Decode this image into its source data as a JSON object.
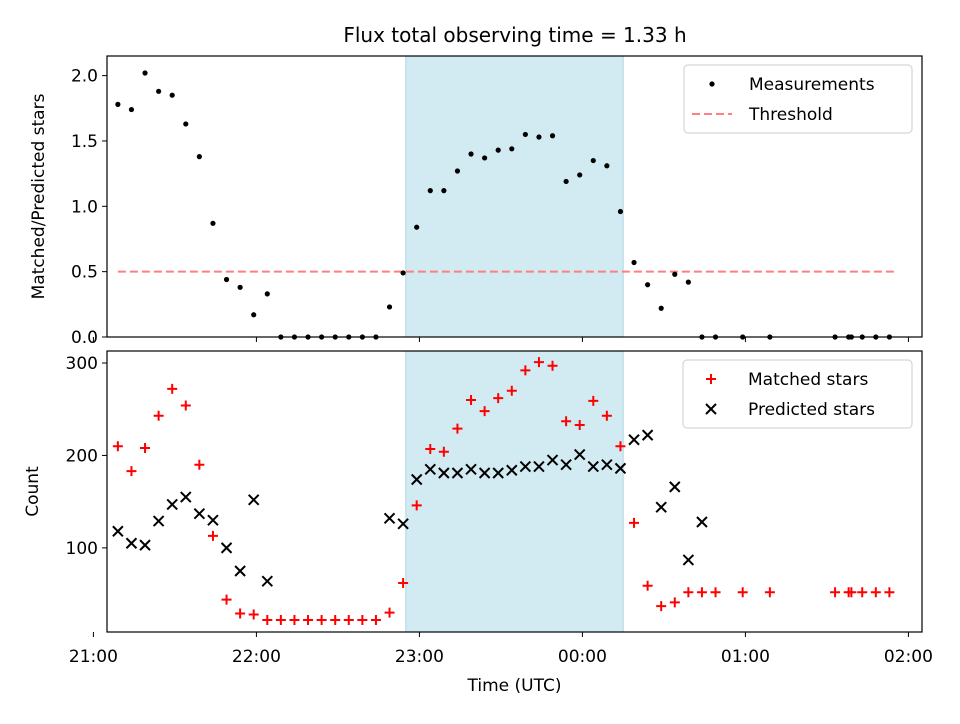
{
  "title": "Flux total observing time = 1.33 h",
  "colors": {
    "span": "#add8e6",
    "threshold": "#ff7f7f",
    "matched": "#ff0000",
    "predicted": "#000000",
    "measurements": "#000000"
  },
  "chart_data": [
    {
      "type": "scatter",
      "ylabel": "Matched/Predicted stars",
      "xlim": [
        "21:05",
        "26:05"
      ],
      "ylim": [
        0,
        2.15
      ],
      "yticks": [
        {
          "v": 0,
          "label": "0.0"
        },
        {
          "v": 0.5,
          "label": "0.5"
        },
        {
          "v": 1.0,
          "label": "1.0"
        },
        {
          "v": 1.5,
          "label": "1.5"
        },
        {
          "v": 2.0,
          "label": "2.0"
        }
      ],
      "shaded_span": [
        "22:55",
        "24:15"
      ],
      "legend": {
        "position": "upper right",
        "entries": [
          "Measurements",
          "Threshold"
        ]
      },
      "threshold": {
        "name": "Threshold",
        "y": 0.5,
        "x": [
          "21:09",
          "25:55"
        ]
      },
      "series": [
        {
          "name": "Measurements",
          "marker": "dot",
          "points": [
            [
              "21:09",
              1.78
            ],
            [
              "21:14",
              1.74
            ],
            [
              "21:19",
              2.02
            ],
            [
              "21:24",
              1.88
            ],
            [
              "21:29",
              1.85
            ],
            [
              "21:34",
              1.63
            ],
            [
              "21:39",
              1.38
            ],
            [
              "21:44",
              0.87
            ],
            [
              "21:49",
              0.44
            ],
            [
              "21:54",
              0.38
            ],
            [
              "21:59",
              0.17
            ],
            [
              "22:04",
              0.33
            ],
            [
              "22:09",
              0.0
            ],
            [
              "22:14",
              0.0
            ],
            [
              "22:19",
              0.0
            ],
            [
              "22:24",
              0.0
            ],
            [
              "22:29",
              0.0
            ],
            [
              "22:34",
              0.0
            ],
            [
              "22:39",
              0.0
            ],
            [
              "22:44",
              0.0
            ],
            [
              "22:49",
              0.23
            ],
            [
              "22:54",
              0.49
            ],
            [
              "22:59",
              0.84
            ],
            [
              "23:04",
              1.12
            ],
            [
              "23:09",
              1.12
            ],
            [
              "23:14",
              1.27
            ],
            [
              "23:19",
              1.4
            ],
            [
              "23:24",
              1.37
            ],
            [
              "23:29",
              1.43
            ],
            [
              "23:34",
              1.44
            ],
            [
              "23:39",
              1.55
            ],
            [
              "23:44",
              1.53
            ],
            [
              "23:49",
              1.54
            ],
            [
              "23:54",
              1.19
            ],
            [
              "23:59",
              1.24
            ],
            [
              "24:04",
              1.35
            ],
            [
              "24:09",
              1.31
            ],
            [
              "24:14",
              0.96
            ],
            [
              "24:19",
              0.57
            ],
            [
              "24:24",
              0.4
            ],
            [
              "24:29",
              0.22
            ],
            [
              "24:34",
              0.48
            ],
            [
              "24:39",
              0.42
            ],
            [
              "24:44",
              0.0
            ],
            [
              "24:49",
              0.0
            ],
            [
              "24:59",
              0.0
            ],
            [
              "25:09",
              0.0
            ],
            [
              "25:33",
              0.0
            ],
            [
              "25:38",
              0.0
            ],
            [
              "25:39",
              0.0
            ],
            [
              "25:43",
              0.0
            ],
            [
              "25:48",
              0.0
            ],
            [
              "25:53",
              0.0
            ]
          ]
        }
      ]
    },
    {
      "type": "scatter",
      "ylabel": "Count",
      "xlabel": "Time (UTC)",
      "xlim": [
        "21:05",
        "26:05"
      ],
      "ylim": [
        9,
        313
      ],
      "yticks": [
        {
          "v": 100,
          "label": "100"
        },
        {
          "v": 200,
          "label": "200"
        },
        {
          "v": 300,
          "label": "300"
        }
      ],
      "xticks": [
        {
          "t": "21:00",
          "label": "21:00"
        },
        {
          "t": "22:00",
          "label": "22:00"
        },
        {
          "t": "23:00",
          "label": "23:00"
        },
        {
          "t": "24:00",
          "label": "00:00"
        },
        {
          "t": "25:00",
          "label": "01:00"
        },
        {
          "t": "26:00",
          "label": "02:00"
        }
      ],
      "shaded_span": [
        "22:55",
        "24:15"
      ],
      "legend": {
        "position": "upper right",
        "entries": [
          "Matched stars",
          "Predicted stars"
        ]
      },
      "series": [
        {
          "name": "Matched stars",
          "marker": "plus",
          "points": [
            [
              "21:09",
              210
            ],
            [
              "21:14",
              183
            ],
            [
              "21:19",
              208
            ],
            [
              "21:24",
              243
            ],
            [
              "21:29",
              272
            ],
            [
              "21:34",
              254
            ],
            [
              "21:39",
              190
            ],
            [
              "21:44",
              113
            ],
            [
              "21:49",
              44
            ],
            [
              "21:54",
              29
            ],
            [
              "21:59",
              28
            ],
            [
              "22:04",
              22
            ],
            [
              "22:09",
              22
            ],
            [
              "22:14",
              22
            ],
            [
              "22:19",
              22
            ],
            [
              "22:24",
              22
            ],
            [
              "22:29",
              22
            ],
            [
              "22:34",
              22
            ],
            [
              "22:39",
              22
            ],
            [
              "22:44",
              22
            ],
            [
              "22:49",
              30
            ],
            [
              "22:54",
              62
            ],
            [
              "22:59",
              146
            ],
            [
              "23:04",
              207
            ],
            [
              "23:09",
              204
            ],
            [
              "23:14",
              229
            ],
            [
              "23:19",
              260
            ],
            [
              "23:24",
              248
            ],
            [
              "23:29",
              262
            ],
            [
              "23:34",
              270
            ],
            [
              "23:39",
              292
            ],
            [
              "23:44",
              301
            ],
            [
              "23:49",
              297
            ],
            [
              "23:54",
              237
            ],
            [
              "23:59",
              233
            ],
            [
              "24:04",
              259
            ],
            [
              "24:09",
              243
            ],
            [
              "24:14",
              210
            ],
            [
              "24:19",
              127
            ],
            [
              "24:24",
              59
            ],
            [
              "24:29",
              37
            ],
            [
              "24:34",
              41
            ],
            [
              "24:39",
              52
            ],
            [
              "24:44",
              52
            ],
            [
              "24:49",
              52
            ],
            [
              "24:59",
              52
            ],
            [
              "25:09",
              52
            ],
            [
              "25:33",
              52
            ],
            [
              "25:38",
              52
            ],
            [
              "25:39",
              52
            ],
            [
              "25:43",
              52
            ],
            [
              "25:48",
              52
            ],
            [
              "25:53",
              52
            ]
          ]
        },
        {
          "name": "Predicted stars",
          "marker": "x",
          "points": [
            [
              "21:09",
              118
            ],
            [
              "21:14",
              105
            ],
            [
              "21:19",
              103
            ],
            [
              "21:24",
              129
            ],
            [
              "21:29",
              147
            ],
            [
              "21:34",
              155
            ],
            [
              "21:39",
              137
            ],
            [
              "21:44",
              130
            ],
            [
              "21:49",
              100
            ],
            [
              "21:54",
              75
            ],
            [
              "21:59",
              152
            ],
            [
              "22:04",
              64
            ],
            [
              "22:49",
              132
            ],
            [
              "22:54",
              126
            ],
            [
              "22:59",
              174
            ],
            [
              "23:04",
              185
            ],
            [
              "23:09",
              181
            ],
            [
              "23:14",
              181
            ],
            [
              "23:19",
              185
            ],
            [
              "23:24",
              181
            ],
            [
              "23:29",
              181
            ],
            [
              "23:34",
              184
            ],
            [
              "23:39",
              188
            ],
            [
              "23:44",
              188
            ],
            [
              "23:49",
              195
            ],
            [
              "23:54",
              190
            ],
            [
              "23:59",
              201
            ],
            [
              "24:04",
              188
            ],
            [
              "24:09",
              190
            ],
            [
              "24:14",
              186
            ],
            [
              "24:19",
              217
            ],
            [
              "24:24",
              222
            ],
            [
              "24:29",
              144
            ],
            [
              "24:34",
              166
            ],
            [
              "24:39",
              87
            ],
            [
              "24:44",
              128
            ]
          ]
        }
      ]
    }
  ]
}
